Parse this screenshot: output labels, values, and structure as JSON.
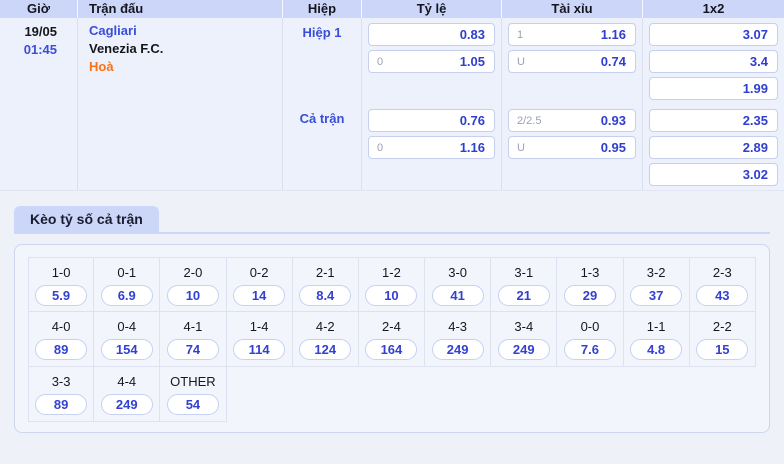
{
  "colors": {
    "header_bg": "#ccd6f8",
    "table_bg": "#edf1fc",
    "page_bg": "#eef1f8",
    "accent_blue": "#3a4ed8",
    "odds_blue": "#2f3ed0",
    "result_orange": "#f97316"
  },
  "odds_table": {
    "headers": {
      "time": "Giờ",
      "match": "Trận đấu",
      "period": "Hiệp",
      "handicap": "Tỷ lệ",
      "over_under": "Tài xỉu",
      "one_x_two": "1x2"
    },
    "match": {
      "date": "19/05",
      "time": "01:45",
      "home": "Cagliari",
      "away": "Venezia F.C.",
      "result": "Hoà"
    },
    "sections": [
      {
        "period": "Hiệp 1",
        "tyle": [
          {
            "hc": "",
            "odds": "0.83"
          },
          {
            "hc": "0",
            "odds": "1.05"
          }
        ],
        "taixiu": [
          {
            "hc": "1",
            "odds": "1.16"
          },
          {
            "hc": "U",
            "odds": "0.74"
          }
        ],
        "onextwo": [
          {
            "hc": "",
            "odds": "3.07"
          },
          {
            "hc": "",
            "odds": "3.4"
          },
          {
            "hc": "",
            "odds": "1.99"
          }
        ]
      },
      {
        "period": "Cả trận",
        "tyle": [
          {
            "hc": "",
            "odds": "0.76"
          },
          {
            "hc": "0",
            "odds": "1.16"
          }
        ],
        "taixiu": [
          {
            "hc": "2/2.5",
            "odds": "0.93"
          },
          {
            "hc": "U",
            "odds": "0.95"
          }
        ],
        "onextwo": [
          {
            "hc": "",
            "odds": "2.35"
          },
          {
            "hc": "",
            "odds": "2.89"
          },
          {
            "hc": "",
            "odds": "3.02"
          }
        ]
      }
    ]
  },
  "score_section": {
    "title": "Kèo tỷ số cả trận",
    "cells": [
      {
        "score": "1-0",
        "odds": "5.9"
      },
      {
        "score": "0-1",
        "odds": "6.9"
      },
      {
        "score": "2-0",
        "odds": "10"
      },
      {
        "score": "0-2",
        "odds": "14"
      },
      {
        "score": "2-1",
        "odds": "8.4"
      },
      {
        "score": "1-2",
        "odds": "10"
      },
      {
        "score": "3-0",
        "odds": "41"
      },
      {
        "score": "3-1",
        "odds": "21"
      },
      {
        "score": "1-3",
        "odds": "29"
      },
      {
        "score": "3-2",
        "odds": "37"
      },
      {
        "score": "2-3",
        "odds": "43"
      },
      {
        "score": "4-0",
        "odds": "89"
      },
      {
        "score": "0-4",
        "odds": "154"
      },
      {
        "score": "4-1",
        "odds": "74"
      },
      {
        "score": "1-4",
        "odds": "114"
      },
      {
        "score": "4-2",
        "odds": "124"
      },
      {
        "score": "2-4",
        "odds": "164"
      },
      {
        "score": "4-3",
        "odds": "249"
      },
      {
        "score": "3-4",
        "odds": "249"
      },
      {
        "score": "0-0",
        "odds": "7.6"
      },
      {
        "score": "1-1",
        "odds": "4.8"
      },
      {
        "score": "2-2",
        "odds": "15"
      },
      {
        "score": "3-3",
        "odds": "89"
      },
      {
        "score": "4-4",
        "odds": "249"
      },
      {
        "score": "OTHER",
        "odds": "54"
      }
    ]
  }
}
